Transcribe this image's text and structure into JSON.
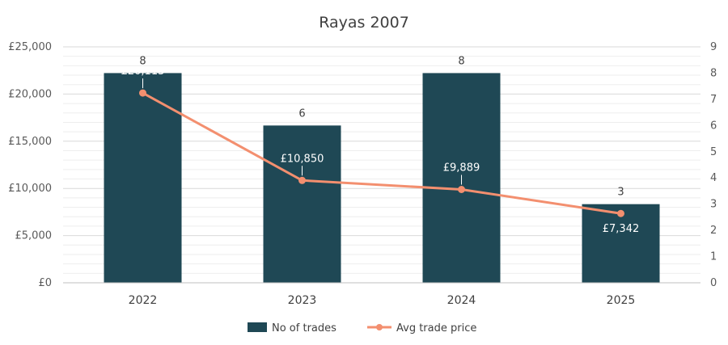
{
  "chart_data": {
    "type": "bar",
    "title": "Rayas 2007",
    "categories": [
      "2022",
      "2023",
      "2024",
      "2025"
    ],
    "series": [
      {
        "name": "No of trades",
        "type": "bar",
        "axis": "right",
        "values": [
          8,
          6,
          8,
          3
        ],
        "color": "#1f4855"
      },
      {
        "name": "Avg trade price",
        "type": "line",
        "axis": "left",
        "values": [
          20113,
          10850,
          9889,
          7342
        ],
        "labels": [
          "£20,113",
          "£10,850",
          "£9,889",
          "£7,342"
        ],
        "color": "#f38f6f"
      }
    ],
    "y_left": {
      "ylim": [
        0,
        25000
      ],
      "ticks": [
        "£0",
        "£5,000",
        "£10,000",
        "£15,000",
        "£20,000",
        "£25,000"
      ],
      "tick_values": [
        0,
        5000,
        10000,
        15000,
        20000,
        25000
      ]
    },
    "y_right": {
      "ylim": [
        0,
        9
      ],
      "ticks": [
        "0",
        "1",
        "2",
        "3",
        "4",
        "5",
        "6",
        "7",
        "8",
        "9"
      ],
      "tick_values": [
        0,
        1,
        2,
        3,
        4,
        5,
        6,
        7,
        8,
        9
      ]
    },
    "xlabel": "",
    "ylabel": "",
    "grid": true,
    "legend": "bottom"
  }
}
